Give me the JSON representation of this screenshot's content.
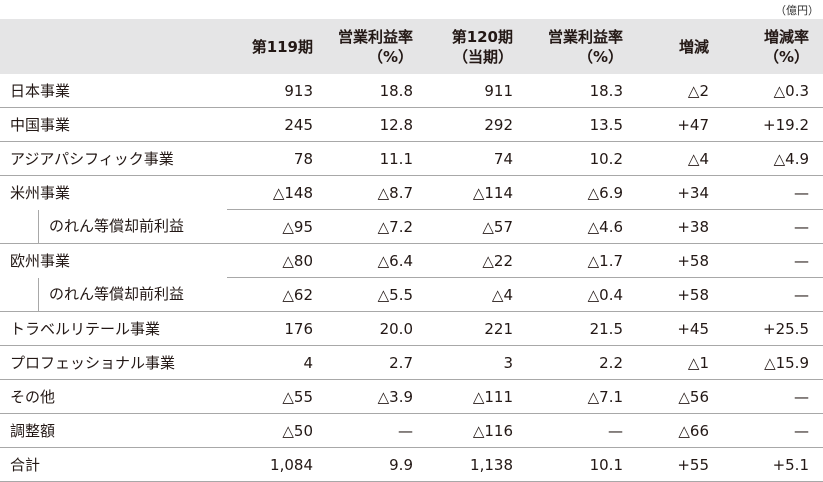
{
  "unit_label": "（億円）",
  "headers": [
    "第119期",
    "営業利益率\n（%）",
    "第120期\n（当期）",
    "営業利益率\n（%）",
    "増減",
    "増減率\n（%）"
  ],
  "rows": [
    {
      "label": "日本事業",
      "sub": false,
      "cells": [
        "913",
        "18.8",
        "911",
        "18.3",
        "△2",
        "△0.3"
      ]
    },
    {
      "label": "中国事業",
      "sub": false,
      "cells": [
        "245",
        "12.8",
        "292",
        "13.5",
        "+47",
        "+19.2"
      ]
    },
    {
      "label": "アジアパシフィック事業",
      "sub": false,
      "cells": [
        "78",
        "11.1",
        "74",
        "10.2",
        "△4",
        "△4.9"
      ]
    },
    {
      "label": "米州事業",
      "sub": false,
      "cells": [
        "△148",
        "△8.7",
        "△114",
        "△6.9",
        "+34",
        "—"
      ]
    },
    {
      "label": "のれん等償却前利益",
      "sub": true,
      "cells": [
        "△95",
        "△7.2",
        "△57",
        "△4.6",
        "+38",
        "—"
      ]
    },
    {
      "label": "欧州事業",
      "sub": false,
      "cells": [
        "△80",
        "△6.4",
        "△22",
        "△1.7",
        "+58",
        "—"
      ]
    },
    {
      "label": "のれん等償却前利益",
      "sub": true,
      "cells": [
        "△62",
        "△5.5",
        "△4",
        "△0.4",
        "+58",
        "—"
      ]
    },
    {
      "label": "トラベルリテール事業",
      "sub": false,
      "cells": [
        "176",
        "20.0",
        "221",
        "21.5",
        "+45",
        "+25.5"
      ]
    },
    {
      "label": "プロフェッショナル事業",
      "sub": false,
      "cells": [
        "4",
        "2.7",
        "3",
        "2.2",
        "△1",
        "△15.9"
      ]
    },
    {
      "label": "その他",
      "sub": false,
      "cells": [
        "△55",
        "△3.9",
        "△111",
        "△7.1",
        "△56",
        "—"
      ]
    },
    {
      "label": "調整額",
      "sub": false,
      "cells": [
        "△50",
        "—",
        "△116",
        "—",
        "△66",
        "—"
      ]
    },
    {
      "label": "合計",
      "sub": false,
      "cells": [
        "1,084",
        "9.9",
        "1,138",
        "10.1",
        "+55",
        "+5.1"
      ]
    }
  ]
}
